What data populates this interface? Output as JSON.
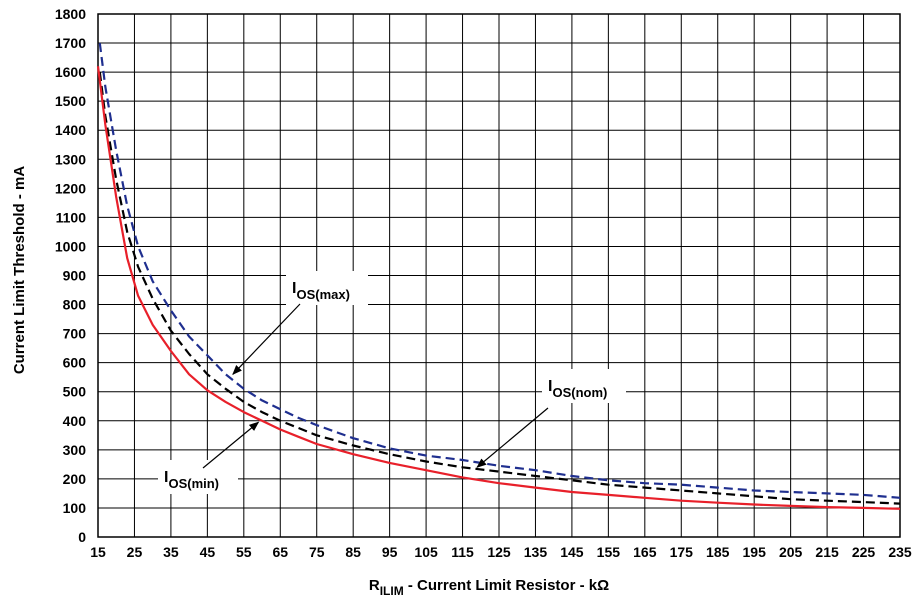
{
  "chart_data": {
    "type": "line",
    "title": "",
    "xlabel": {
      "prefix": "R",
      "subscript": "ILIM",
      "suffix": " - Current Limit Resistor - kΩ"
    },
    "ylabel": "Current Limit Threshold - mA",
    "xlim": [
      15,
      235
    ],
    "ylim": [
      0,
      1800
    ],
    "x_ticks": [
      15,
      25,
      35,
      45,
      55,
      65,
      75,
      85,
      95,
      105,
      115,
      125,
      135,
      145,
      155,
      165,
      175,
      185,
      195,
      205,
      215,
      225,
      235
    ],
    "y_ticks": [
      0,
      100,
      200,
      300,
      400,
      500,
      600,
      700,
      800,
      900,
      1000,
      1100,
      1200,
      1300,
      1400,
      1500,
      1600,
      1700,
      1800
    ],
    "grid": true,
    "series": [
      {
        "label": "max",
        "color": "#1f2f8f",
        "dash": "dashed",
        "x": [
          15.5,
          17,
          20,
          23,
          26,
          30,
          35,
          40,
          45,
          50,
          55,
          60,
          65,
          70,
          75,
          85,
          95,
          105,
          115,
          125,
          135,
          145,
          155,
          165,
          175,
          185,
          195,
          205,
          215,
          225,
          235
        ],
        "y": [
          1700,
          1550,
          1330,
          1140,
          1000,
          880,
          780,
          690,
          625,
          560,
          510,
          470,
          440,
          410,
          385,
          340,
          305,
          280,
          265,
          245,
          230,
          210,
          195,
          185,
          180,
          170,
          160,
          155,
          150,
          145,
          135
        ]
      },
      {
        "label": "nom",
        "color": "#000000",
        "dash": "dashed",
        "x": [
          15.5,
          17,
          20,
          23,
          26,
          30,
          35,
          40,
          45,
          50,
          55,
          60,
          65,
          70,
          75,
          85,
          95,
          105,
          115,
          125,
          135,
          145,
          155,
          165,
          175,
          185,
          195,
          205,
          215,
          225,
          235
        ],
        "y": [
          1600,
          1450,
          1230,
          1050,
          930,
          820,
          710,
          630,
          560,
          510,
          465,
          430,
          400,
          375,
          350,
          315,
          285,
          260,
          240,
          225,
          210,
          195,
          180,
          170,
          160,
          150,
          140,
          130,
          125,
          120,
          115
        ]
      },
      {
        "label": "min",
        "color": "#e8202a",
        "dash": "solid",
        "x": [
          15,
          17,
          20,
          23,
          26,
          30,
          35,
          40,
          45,
          50,
          55,
          60,
          65,
          70,
          75,
          85,
          95,
          105,
          115,
          125,
          135,
          145,
          155,
          165,
          175,
          185,
          195,
          205,
          215,
          225,
          235
        ],
        "y": [
          1620,
          1420,
          1170,
          960,
          830,
          730,
          640,
          560,
          505,
          465,
          430,
          400,
          370,
          345,
          320,
          285,
          255,
          230,
          205,
          185,
          170,
          155,
          145,
          135,
          125,
          118,
          112,
          107,
          103,
          100,
          97
        ]
      }
    ],
    "annotations": [
      {
        "name": "max",
        "main": "I",
        "sub": "OS(max)",
        "arrow_to": [
          52,
          560
        ]
      },
      {
        "name": "nom",
        "main": "I",
        "sub": "OS(nom)",
        "arrow_to": [
          119,
          240
        ]
      },
      {
        "name": "min",
        "main": "I",
        "sub": "OS(min)",
        "arrow_to": [
          59,
          395
        ]
      }
    ]
  }
}
